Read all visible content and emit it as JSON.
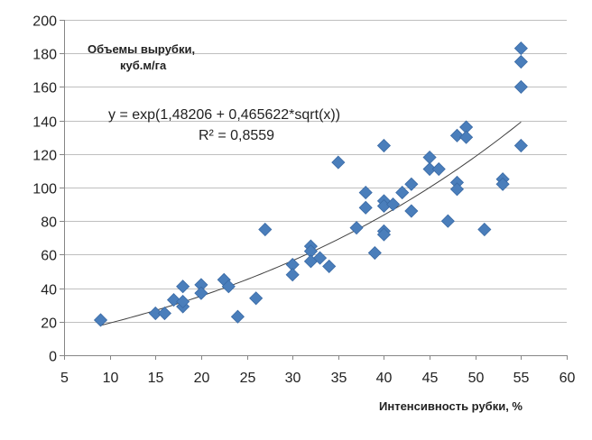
{
  "chart_data": {
    "type": "scatter",
    "xlabel": "Интенсивность рубки, %",
    "ylabel_line1": "Объемы вырубки,",
    "ylabel_line2": "куб.м/га",
    "xlim": [
      5,
      60
    ],
    "ylim": [
      0,
      200
    ],
    "x_ticks": [
      5,
      10,
      15,
      20,
      25,
      30,
      35,
      40,
      45,
      50,
      55,
      60
    ],
    "y_ticks": [
      0,
      20,
      40,
      60,
      80,
      100,
      120,
      140,
      160,
      180,
      200
    ],
    "grid": "horizontal",
    "marker_color": "#4a7ebb",
    "trend_color": "#404040",
    "trendline": {
      "type": "exp-sqrt",
      "a": 1.48206,
      "b": 0.465622,
      "x_range": [
        9,
        55
      ],
      "equation_label": "y = exp(1,48206 + 0,465622*sqrt(x))",
      "r2_label": "R² = 0,8559"
    },
    "series": [
      {
        "points": [
          [
            9,
            21
          ],
          [
            15,
            25
          ],
          [
            16,
            25
          ],
          [
            17,
            33
          ],
          [
            18,
            41
          ],
          [
            18,
            29
          ],
          [
            18,
            32
          ],
          [
            20,
            42
          ],
          [
            20,
            37
          ],
          [
            22.5,
            45
          ],
          [
            23,
            41
          ],
          [
            24,
            23
          ],
          [
            26,
            34
          ],
          [
            27,
            75
          ],
          [
            30,
            54
          ],
          [
            30,
            48
          ],
          [
            32,
            65
          ],
          [
            32,
            62
          ],
          [
            32,
            56
          ],
          [
            33,
            58
          ],
          [
            34,
            53
          ],
          [
            35,
            115
          ],
          [
            37,
            76
          ],
          [
            38,
            97
          ],
          [
            38,
            88
          ],
          [
            39,
            61
          ],
          [
            40,
            125
          ],
          [
            40,
            92
          ],
          [
            40,
            89
          ],
          [
            40,
            74
          ],
          [
            40,
            72
          ],
          [
            41,
            90
          ],
          [
            42,
            97
          ],
          [
            43,
            102
          ],
          [
            43,
            86
          ],
          [
            45,
            118
          ],
          [
            45,
            111
          ],
          [
            46,
            111
          ],
          [
            47,
            80
          ],
          [
            48,
            131
          ],
          [
            48,
            103
          ],
          [
            48,
            99
          ],
          [
            49,
            136
          ],
          [
            49,
            130
          ],
          [
            51,
            75
          ],
          [
            53,
            105
          ],
          [
            53,
            102
          ],
          [
            55,
            183
          ],
          [
            55,
            175
          ],
          [
            55,
            160
          ],
          [
            55,
            125
          ]
        ]
      }
    ]
  }
}
